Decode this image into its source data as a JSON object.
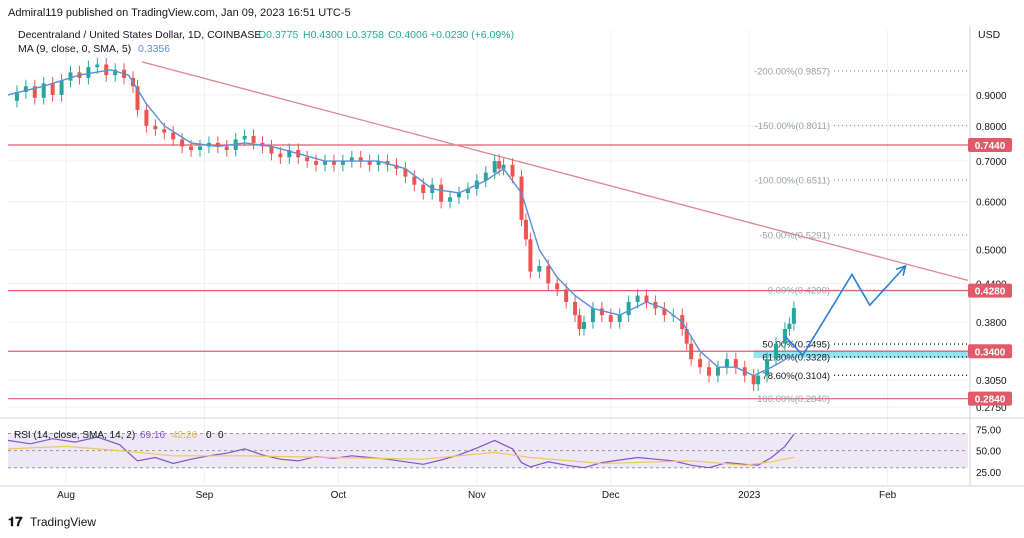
{
  "header": {
    "published": "Admiral119 published on TradingView.com, Jan 09, 2023 16:51 UTC-5",
    "symbol": "Decentraland / United States Dollar, 1D, COINBASE",
    "ohlc_open": "O0.3775",
    "ohlc_high": "H0.4300",
    "ohlc_low": "L0.3758",
    "ohlc_close": "C0.4006",
    "change": "+0.0230 (+6.09%)",
    "ma_label": "MA (9, close, 0, SMA, 5)",
    "ma_value": "0.3356",
    "currency": "USD"
  },
  "rsi_header": {
    "label": "RSI (14, close, SMA, 14, 2)",
    "rsi_value": "69.16",
    "sma_value": "42.26",
    "extra1": "0",
    "extra2": "0"
  },
  "footer": {
    "brand": "TradingView"
  },
  "colors": {
    "up": "#26a69a",
    "down": "#ef5350",
    "ma": "#5b8fd6",
    "resistance": "#e05a6a",
    "trend": "#e08592",
    "projection": "#2a7fd4",
    "fib_text": "#9aa0aa",
    "rsi_line": "#7e57c2",
    "rsi_sma": "#f0c75e",
    "rsi_band": "#ede7f6",
    "support_zone": "#7fdfef"
  },
  "price_labels": [
    {
      "text": "0.7440",
      "value": 0.744
    },
    {
      "text": "0.4280",
      "value": 0.428
    },
    {
      "text": "0.3400",
      "value": 0.34
    },
    {
      "text": "0.2840",
      "value": 0.284
    }
  ],
  "rsi_axis_labels": [
    "75.00",
    "50.00",
    "25.00"
  ],
  "fib_levels": [
    {
      "label": "-200.00%(0.9857)",
      "value": 0.9857
    },
    {
      "label": "-150.00%(0.8011)",
      "value": 0.8011
    },
    {
      "label": "-100.00%(0.6511)",
      "value": 0.6511
    },
    {
      "label": "-50.00%(0.5291)",
      "value": 0.5291
    },
    {
      "label": "0.00%(0.4290)",
      "value": 0.429
    },
    {
      "label": "50.00%(0.3495)",
      "value": 0.3495
    },
    {
      "label": "61.80%(0.3328)",
      "value": 0.3328
    },
    {
      "label": "78.60%(0.3104)",
      "value": 0.3104
    },
    {
      "label": "100.00%(0.2840)",
      "value": 0.284
    }
  ],
  "chart_data": {
    "type": "candlestick",
    "title": "Decentraland / United States Dollar, 1D, COINBASE",
    "y_scale": "log",
    "y_ticks": [
      0.9,
      0.8,
      0.7,
      0.6,
      0.5,
      0.44,
      0.38,
      0.305,
      0.275
    ],
    "y_tick_labels": [
      "0.9000",
      "0.8000",
      "0.7000",
      "0.6000",
      "0.5000",
      "0.4400",
      "0.3800",
      "0.3050",
      "0.2750"
    ],
    "y_range": [
      0.27,
      1.1
    ],
    "x_ticks": [
      {
        "label": "Aug",
        "day": 0
      },
      {
        "label": "Sep",
        "day": 31
      },
      {
        "label": "Oct",
        "day": 61
      },
      {
        "label": "Nov",
        "day": 92
      },
      {
        "label": "Dec",
        "day": 122
      },
      {
        "label": "2023",
        "day": 153
      },
      {
        "label": "Feb",
        "day": 184
      }
    ],
    "x_range_days": [
      -13,
      202
    ],
    "close_series": [
      [
        -13,
        0.88
      ],
      [
        -11,
        0.91
      ],
      [
        -9,
        0.93
      ],
      [
        -7,
        0.89
      ],
      [
        -5,
        0.94
      ],
      [
        -3,
        0.9
      ],
      [
        -1,
        0.95
      ],
      [
        1,
        0.98
      ],
      [
        3,
        0.96
      ],
      [
        5,
        1.0
      ],
      [
        7,
        1.01
      ],
      [
        9,
        0.97
      ],
      [
        11,
        0.99
      ],
      [
        13,
        0.96
      ],
      [
        15,
        0.93
      ],
      [
        16,
        0.85
      ],
      [
        18,
        0.8
      ],
      [
        20,
        0.79
      ],
      [
        22,
        0.78
      ],
      [
        24,
        0.76
      ],
      [
        26,
        0.74
      ],
      [
        28,
        0.73
      ],
      [
        30,
        0.74
      ],
      [
        32,
        0.75
      ],
      [
        34,
        0.74
      ],
      [
        36,
        0.73
      ],
      [
        38,
        0.76
      ],
      [
        40,
        0.77
      ],
      [
        42,
        0.75
      ],
      [
        44,
        0.74
      ],
      [
        46,
        0.72
      ],
      [
        48,
        0.71
      ],
      [
        50,
        0.73
      ],
      [
        52,
        0.71
      ],
      [
        54,
        0.7
      ],
      [
        56,
        0.69
      ],
      [
        58,
        0.7
      ],
      [
        60,
        0.69
      ],
      [
        62,
        0.7
      ],
      [
        64,
        0.71
      ],
      [
        66,
        0.7
      ],
      [
        68,
        0.69
      ],
      [
        70,
        0.7
      ],
      [
        72,
        0.69
      ],
      [
        74,
        0.68
      ],
      [
        76,
        0.66
      ],
      [
        78,
        0.64
      ],
      [
        80,
        0.62
      ],
      [
        82,
        0.64
      ],
      [
        84,
        0.6
      ],
      [
        86,
        0.61
      ],
      [
        88,
        0.62
      ],
      [
        90,
        0.63
      ],
      [
        92,
        0.65
      ],
      [
        94,
        0.67
      ],
      [
        96,
        0.7
      ],
      [
        97,
        0.68
      ],
      [
        98,
        0.69
      ],
      [
        100,
        0.66
      ],
      [
        102,
        0.56
      ],
      [
        103,
        0.52
      ],
      [
        104,
        0.46
      ],
      [
        106,
        0.47
      ],
      [
        108,
        0.44
      ],
      [
        110,
        0.43
      ],
      [
        112,
        0.41
      ],
      [
        114,
        0.39
      ],
      [
        115,
        0.37
      ],
      [
        116,
        0.38
      ],
      [
        118,
        0.4
      ],
      [
        120,
        0.39
      ],
      [
        122,
        0.38
      ],
      [
        124,
        0.39
      ],
      [
        126,
        0.41
      ],
      [
        128,
        0.42
      ],
      [
        130,
        0.41
      ],
      [
        132,
        0.4
      ],
      [
        134,
        0.39
      ],
      [
        136,
        0.39
      ],
      [
        138,
        0.37
      ],
      [
        139,
        0.35
      ],
      [
        140,
        0.33
      ],
      [
        142,
        0.32
      ],
      [
        144,
        0.31
      ],
      [
        146,
        0.32
      ],
      [
        148,
        0.33
      ],
      [
        150,
        0.32
      ],
      [
        152,
        0.31
      ],
      [
        154,
        0.3
      ],
      [
        155,
        0.31
      ],
      [
        157,
        0.33
      ],
      [
        159,
        0.35
      ],
      [
        161,
        0.37
      ],
      [
        162,
        0.3775
      ],
      [
        163,
        0.4006
      ]
    ],
    "ma_series": [
      [
        -13,
        0.9
      ],
      [
        -5,
        0.93
      ],
      [
        3,
        0.97
      ],
      [
        10,
        0.99
      ],
      [
        14,
        0.97
      ],
      [
        18,
        0.87
      ],
      [
        22,
        0.8
      ],
      [
        28,
        0.75
      ],
      [
        34,
        0.74
      ],
      [
        40,
        0.75
      ],
      [
        46,
        0.74
      ],
      [
        52,
        0.72
      ],
      [
        58,
        0.7
      ],
      [
        64,
        0.7
      ],
      [
        70,
        0.7
      ],
      [
        76,
        0.68
      ],
      [
        82,
        0.63
      ],
      [
        88,
        0.62
      ],
      [
        94,
        0.65
      ],
      [
        98,
        0.68
      ],
      [
        102,
        0.62
      ],
      [
        106,
        0.5
      ],
      [
        110,
        0.45
      ],
      [
        114,
        0.42
      ],
      [
        118,
        0.4
      ],
      [
        124,
        0.39
      ],
      [
        130,
        0.41
      ],
      [
        134,
        0.4
      ],
      [
        138,
        0.38
      ],
      [
        142,
        0.34
      ],
      [
        146,
        0.32
      ],
      [
        150,
        0.32
      ],
      [
        154,
        0.31
      ],
      [
        158,
        0.32
      ],
      [
        163,
        0.3356
      ]
    ],
    "rsi_series": [
      [
        -13,
        62
      ],
      [
        -8,
        58
      ],
      [
        -3,
        64
      ],
      [
        2,
        60
      ],
      [
        7,
        66
      ],
      [
        12,
        57
      ],
      [
        16,
        38
      ],
      [
        20,
        42
      ],
      [
        24,
        35
      ],
      [
        28,
        40
      ],
      [
        32,
        44
      ],
      [
        36,
        47
      ],
      [
        40,
        52
      ],
      [
        44,
        45
      ],
      [
        48,
        40
      ],
      [
        52,
        38
      ],
      [
        56,
        43
      ],
      [
        60,
        41
      ],
      [
        64,
        44
      ],
      [
        68,
        42
      ],
      [
        72,
        40
      ],
      [
        76,
        37
      ],
      [
        80,
        34
      ],
      [
        84,
        39
      ],
      [
        88,
        45
      ],
      [
        92,
        53
      ],
      [
        96,
        62
      ],
      [
        98,
        57
      ],
      [
        100,
        52
      ],
      [
        102,
        36
      ],
      [
        104,
        31
      ],
      [
        108,
        37
      ],
      [
        112,
        33
      ],
      [
        116,
        30
      ],
      [
        120,
        36
      ],
      [
        124,
        39
      ],
      [
        128,
        42
      ],
      [
        132,
        40
      ],
      [
        136,
        38
      ],
      [
        140,
        33
      ],
      [
        144,
        30
      ],
      [
        148,
        36
      ],
      [
        152,
        34
      ],
      [
        155,
        33
      ],
      [
        158,
        42
      ],
      [
        161,
        55
      ],
      [
        163,
        69.16
      ]
    ],
    "rsi_sma_series": [
      [
        -13,
        52
      ],
      [
        0,
        55
      ],
      [
        12,
        50
      ],
      [
        24,
        44
      ],
      [
        40,
        44
      ],
      [
        60,
        42
      ],
      [
        80,
        40
      ],
      [
        96,
        48
      ],
      [
        104,
        42
      ],
      [
        120,
        35
      ],
      [
        140,
        38
      ],
      [
        152,
        33
      ],
      [
        158,
        37
      ],
      [
        163,
        42.26
      ]
    ],
    "horizontal_levels": [
      0.744,
      0.428,
      0.34,
      0.284
    ],
    "trendline": {
      "from": [
        17,
        1.02
      ],
      "to": [
        202,
        0.445
      ]
    },
    "projection_path": [
      [
        161,
        0.36
      ],
      [
        165,
        0.335
      ],
      [
        176,
        0.455
      ],
      [
        180,
        0.405
      ],
      [
        188,
        0.47
      ]
    ],
    "rsi_bands": [
      70,
      50,
      30
    ],
    "rsi_range": [
      18,
      80
    ],
    "legend": "top-left"
  }
}
